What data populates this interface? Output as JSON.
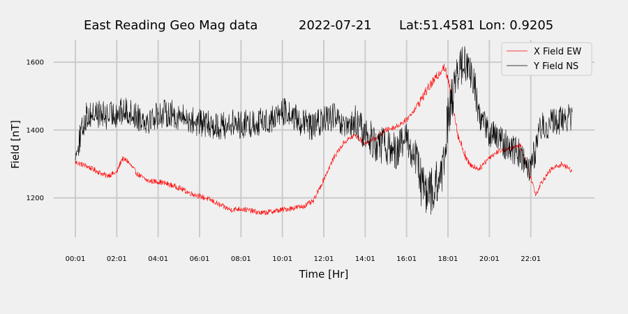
{
  "chart_data": {
    "type": "line",
    "title": {
      "station": "East Reading Geo Mag data",
      "date": "2022-07-21",
      "coords": "Lat:51.4581  Lon: 0.9205"
    },
    "xlabel": "Time  [Hr]",
    "ylabel": "Field  [nT]",
    "x_unit": "hours",
    "xlim": [
      0.0,
      24.0
    ],
    "ylim": [
      1084,
      1666
    ],
    "xticks": [
      {
        "value": 0.0,
        "label": "00:01"
      },
      {
        "value": 2.0,
        "label": "02:01"
      },
      {
        "value": 4.0,
        "label": "04:01"
      },
      {
        "value": 6.0,
        "label": "06:01"
      },
      {
        "value": 8.0,
        "label": "08:01"
      },
      {
        "value": 10.0,
        "label": "10:01"
      },
      {
        "value": 12.0,
        "label": "12:01"
      },
      {
        "value": 14.0,
        "label": "14:01"
      },
      {
        "value": 16.0,
        "label": "16:01"
      },
      {
        "value": 18.0,
        "label": "18:01"
      },
      {
        "value": 20.0,
        "label": "20:01"
      },
      {
        "value": 22.0,
        "label": "22:01"
      }
    ],
    "yticks": [
      1200,
      1400,
      1600
    ],
    "grid": true,
    "legend_position": "top-right",
    "series": [
      {
        "name": "X Field EW",
        "color": "#ff0000",
        "x": [
          0.0,
          0.5,
          1.0,
          1.5,
          2.0,
          2.25,
          2.5,
          3.0,
          3.5,
          4.0,
          4.5,
          5.0,
          5.5,
          6.0,
          6.5,
          7.0,
          7.5,
          8.0,
          8.5,
          9.0,
          9.5,
          10.0,
          10.5,
          11.0,
          11.5,
          12.0,
          12.5,
          13.0,
          13.5,
          14.0,
          14.5,
          15.0,
          15.5,
          16.0,
          16.5,
          17.0,
          17.5,
          17.8,
          18.0,
          18.25,
          18.5,
          19.0,
          19.5,
          20.0,
          20.5,
          21.0,
          21.5,
          22.0,
          22.25,
          22.5,
          23.0,
          23.5,
          24.0
        ],
        "y": [
          1305,
          1295,
          1280,
          1265,
          1275,
          1315,
          1310,
          1270,
          1250,
          1248,
          1240,
          1230,
          1215,
          1205,
          1195,
          1178,
          1165,
          1168,
          1162,
          1155,
          1160,
          1165,
          1170,
          1175,
          1190,
          1255,
          1320,
          1365,
          1385,
          1360,
          1375,
          1400,
          1410,
          1430,
          1470,
          1520,
          1560,
          1590,
          1550,
          1470,
          1380,
          1300,
          1285,
          1320,
          1340,
          1345,
          1355,
          1260,
          1210,
          1245,
          1285,
          1300,
          1280
        ]
      },
      {
        "name": "Y Field NS",
        "color": "#000000",
        "x": [
          0.0,
          0.5,
          1.0,
          1.5,
          2.0,
          2.5,
          3.0,
          3.5,
          4.0,
          4.5,
          5.0,
          5.5,
          6.0,
          6.5,
          7.0,
          7.5,
          8.0,
          8.5,
          9.0,
          9.5,
          10.0,
          10.5,
          11.0,
          11.5,
          12.0,
          12.5,
          13.0,
          13.5,
          14.0,
          14.5,
          15.0,
          15.5,
          16.0,
          16.5,
          16.75,
          17.0,
          17.5,
          17.8,
          18.0,
          18.25,
          18.5,
          18.75,
          19.0,
          19.25,
          19.5,
          20.0,
          20.5,
          21.0,
          21.5,
          22.0,
          22.5,
          23.0,
          23.5,
          24.0
        ],
        "y": [
          1320,
          1440,
          1450,
          1440,
          1450,
          1455,
          1440,
          1430,
          1445,
          1450,
          1440,
          1430,
          1420,
          1415,
          1410,
          1420,
          1415,
          1420,
          1425,
          1430,
          1455,
          1440,
          1420,
          1410,
          1430,
          1440,
          1400,
          1420,
          1390,
          1360,
          1350,
          1340,
          1370,
          1310,
          1230,
          1210,
          1240,
          1280,
          1450,
          1520,
          1570,
          1600,
          1580,
          1540,
          1450,
          1390,
          1370,
          1350,
          1330,
          1290,
          1410,
          1420,
          1430,
          1440
        ]
      }
    ]
  }
}
